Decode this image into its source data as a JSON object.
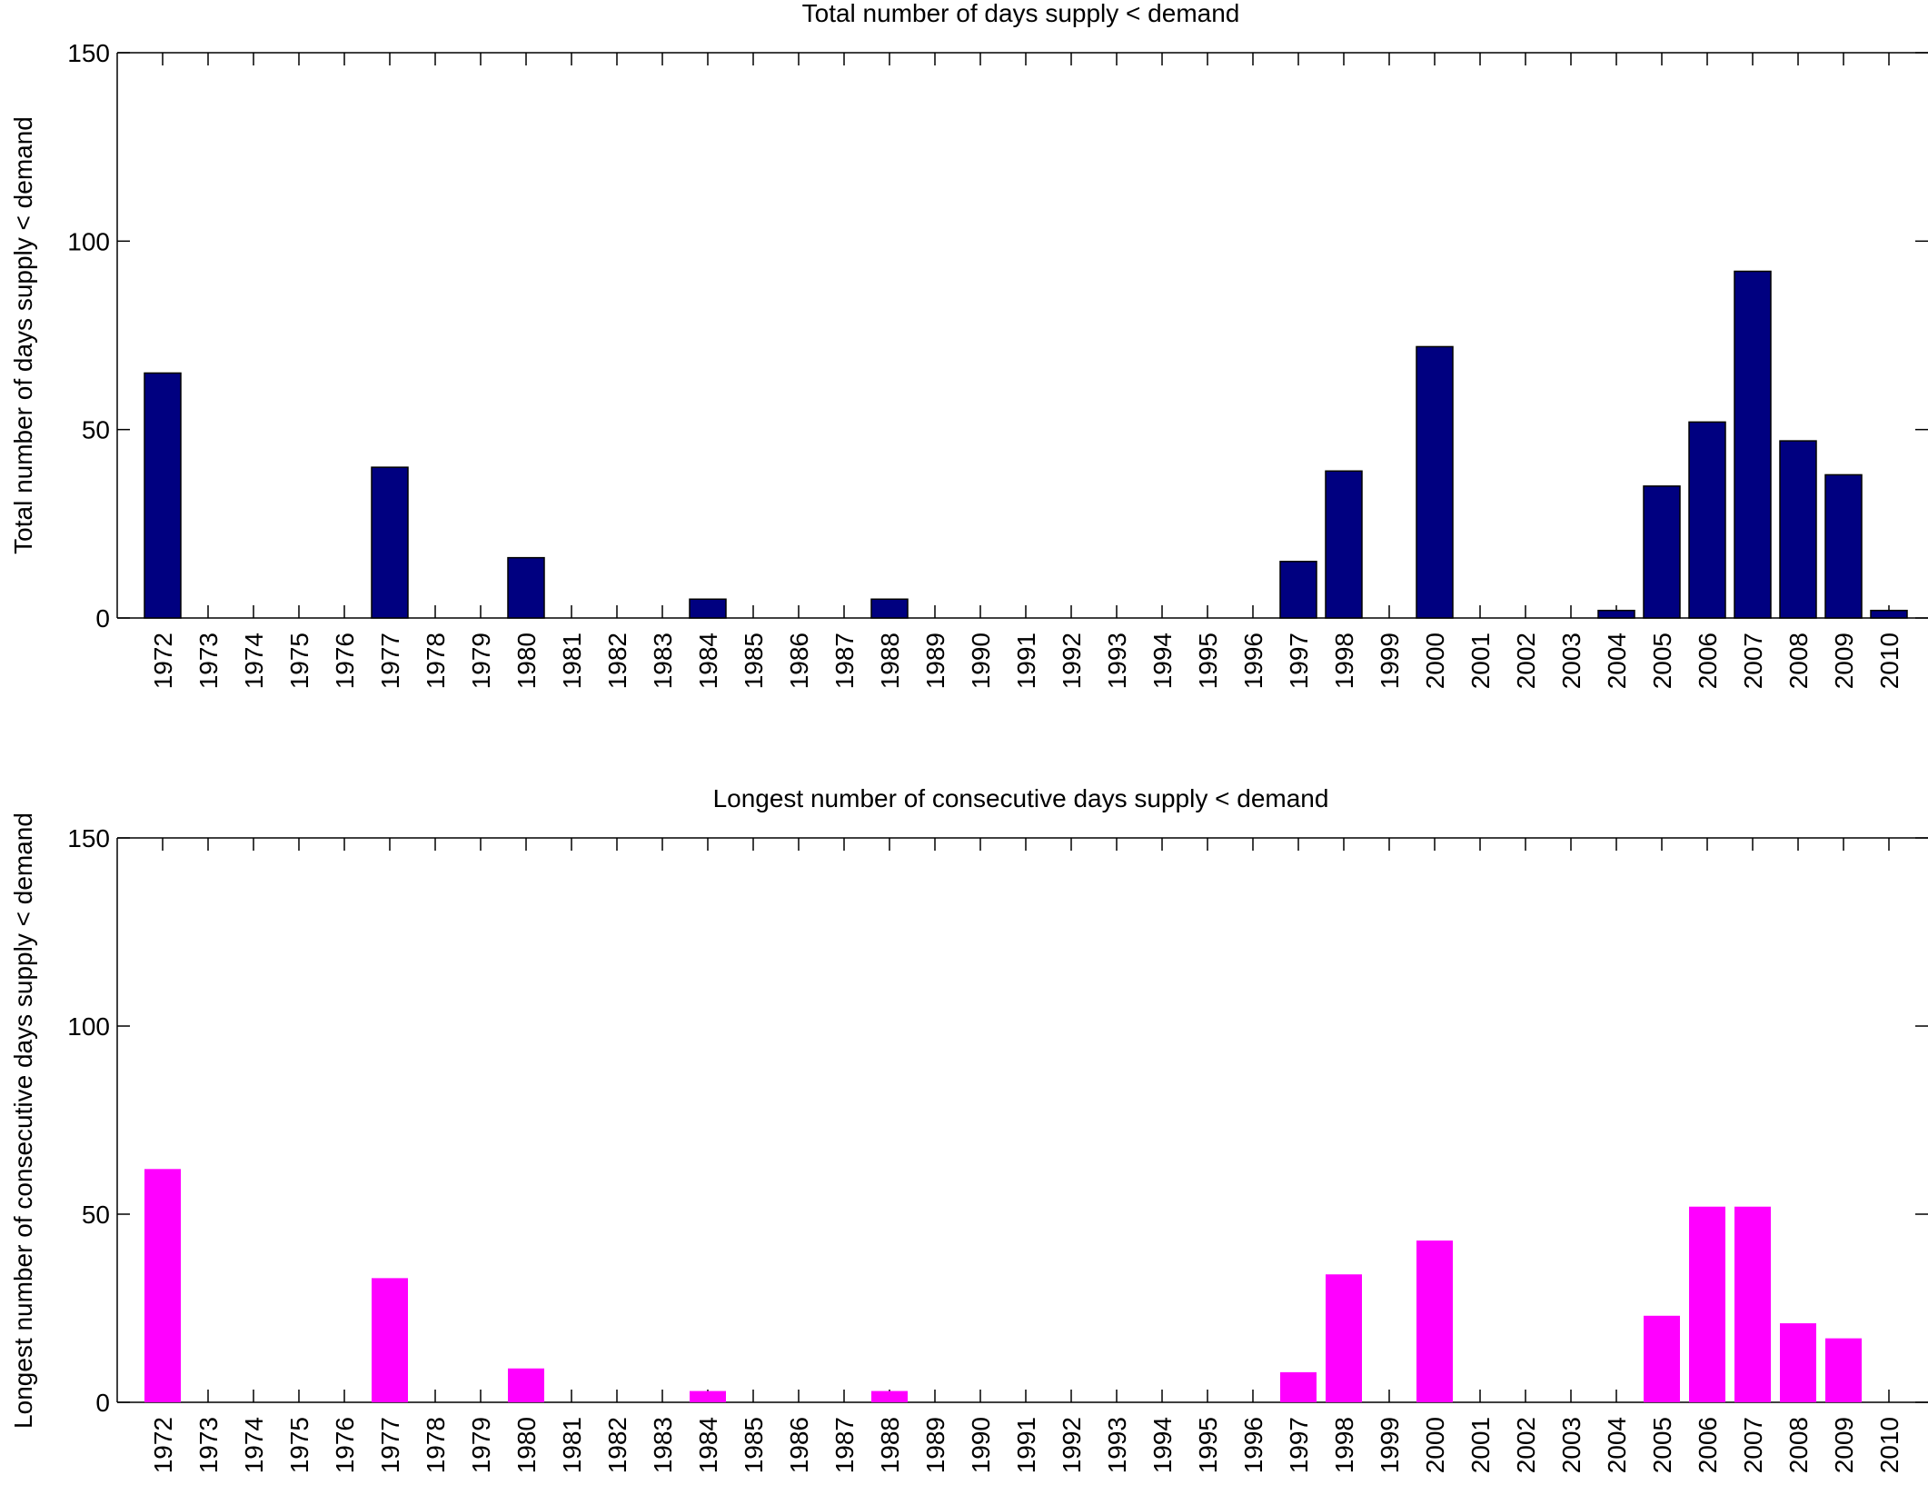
{
  "chart_data": [
    {
      "type": "bar",
      "title": "Total number of days supply < demand",
      "ylabel": "Total number of days supply < demand",
      "xlabel": "",
      "ylim": [
        0,
        150
      ],
      "yticks": [
        0,
        50,
        100,
        150
      ],
      "categories": [
        "1972",
        "1973",
        "1974",
        "1975",
        "1976",
        "1977",
        "1978",
        "1979",
        "1980",
        "1981",
        "1982",
        "1983",
        "1984",
        "1985",
        "1986",
        "1987",
        "1988",
        "1989",
        "1990",
        "1991",
        "1992",
        "1993",
        "1994",
        "1995",
        "1996",
        "1997",
        "1998",
        "1999",
        "2000",
        "2001",
        "2002",
        "2003",
        "2004",
        "2005",
        "2006",
        "2007",
        "2008",
        "2009",
        "2010"
      ],
      "values": [
        65,
        0,
        0,
        0,
        0,
        40,
        0,
        0,
        16,
        0,
        0,
        0,
        5,
        0,
        0,
        0,
        5,
        0,
        0,
        0,
        0,
        0,
        0,
        0,
        0,
        15,
        39,
        0,
        72,
        0,
        0,
        0,
        2,
        35,
        52,
        92,
        47,
        38,
        2
      ],
      "color": "#000080",
      "bar_outline": true,
      "grid": false
    },
    {
      "type": "bar",
      "title": "Longest number of consecutive days supply < demand",
      "ylabel": "Longest number of consecutive days supply < demand",
      "xlabel": "",
      "ylim": [
        0,
        150
      ],
      "yticks": [
        0,
        50,
        100,
        150
      ],
      "categories": [
        "1972",
        "1973",
        "1974",
        "1975",
        "1976",
        "1977",
        "1978",
        "1979",
        "1980",
        "1981",
        "1982",
        "1983",
        "1984",
        "1985",
        "1986",
        "1987",
        "1988",
        "1989",
        "1990",
        "1991",
        "1992",
        "1993",
        "1994",
        "1995",
        "1996",
        "1997",
        "1998",
        "1999",
        "2000",
        "2001",
        "2002",
        "2003",
        "2004",
        "2005",
        "2006",
        "2007",
        "2008",
        "2009",
        "2010"
      ],
      "values": [
        62,
        0,
        0,
        0,
        0,
        33,
        0,
        0,
        9,
        0,
        0,
        0,
        3,
        0,
        0,
        0,
        3,
        0,
        0,
        0,
        0,
        0,
        0,
        0,
        0,
        8,
        34,
        0,
        43,
        0,
        0,
        0,
        0,
        23,
        52,
        52,
        21,
        17,
        0
      ],
      "color": "#ff00ff",
      "bar_outline": false,
      "grid": false
    }
  ]
}
